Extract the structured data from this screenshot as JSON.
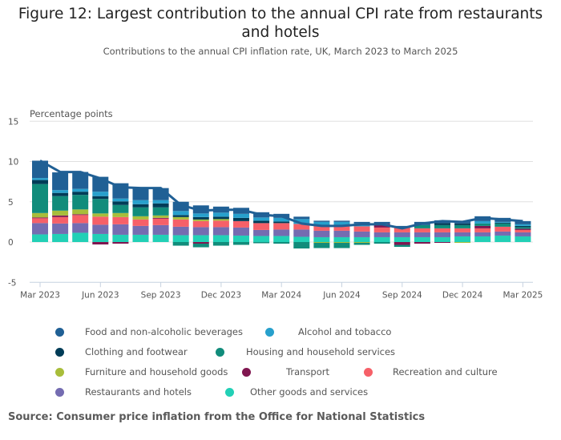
{
  "title": "Figure 12: Largest contribution to the annual CPI rate from restaurants and hotels",
  "subtitle": "Contributions to the annual CPI inflation rate, UK, March 2023 to March 2025",
  "source": "Source: Consumer price inflation from the Office for National Statistics",
  "chart_data": {
    "type": "bar",
    "stacked": true,
    "title": "Figure 12: Largest contribution to the annual CPI rate from restaurants and hotels",
    "subtitle": "Contributions to the annual CPI inflation rate, UK, March 2023 to March 2025",
    "ylabel": "Percentage points",
    "xlabel": "",
    "ylim": [
      -5,
      15
    ],
    "yticks": [
      15,
      10,
      5,
      0,
      -5
    ],
    "grid": true,
    "legend_position": "bottom",
    "x": [
      "Mar 2023",
      "Apr 2023",
      "May 2023",
      "Jun 2023",
      "Jul 2023",
      "Aug 2023",
      "Sep 2023",
      "Oct 2023",
      "Nov 2023",
      "Dec 2023",
      "Jan 2024",
      "Feb 2024",
      "Mar 2024",
      "Apr 2024",
      "May 2024",
      "Jun 2024",
      "Jul 2024",
      "Aug 2024",
      "Sep 2024",
      "Oct 2024",
      "Nov 2024",
      "Dec 2024",
      "Jan 2025",
      "Feb 2025",
      "Mar 2025"
    ],
    "xtick_labels": [
      "Mar 2023",
      "Jun 2023",
      "Sep 2023",
      "Dec 2023",
      "Mar 2024",
      "Jun 2024",
      "Sep 2024",
      "Dec 2024",
      "Mar 2025"
    ],
    "series": [
      {
        "name": "Other goods and services",
        "color": "#22d0b6",
        "values": [
          0.95,
          1.0,
          1.15,
          1.0,
          0.9,
          0.9,
          0.9,
          0.85,
          0.85,
          0.85,
          0.8,
          0.75,
          0.75,
          0.65,
          0.6,
          0.6,
          0.6,
          0.6,
          0.6,
          0.6,
          0.6,
          0.7,
          0.7,
          0.8,
          0.7
        ]
      },
      {
        "name": "Restaurants and hotels",
        "color": "#746cb1",
        "values": [
          1.4,
          1.3,
          1.2,
          1.15,
          1.3,
          1.1,
          1.2,
          1.05,
          1.0,
          1.0,
          1.0,
          0.75,
          0.8,
          0.9,
          0.8,
          0.8,
          0.7,
          0.6,
          0.6,
          0.6,
          0.6,
          0.5,
          0.5,
          0.5,
          0.5
        ]
      },
      {
        "name": "Recreation and culture",
        "color": "#f66068",
        "values": [
          0.6,
          0.8,
          1.0,
          1.0,
          0.9,
          0.8,
          0.8,
          0.9,
          0.75,
          0.8,
          0.8,
          0.85,
          0.8,
          0.7,
          0.55,
          0.55,
          0.65,
          0.6,
          0.6,
          0.5,
          0.5,
          0.5,
          0.5,
          0.6,
          0.3
        ]
      },
      {
        "name": "Transport",
        "color": "#801650",
        "values": [
          0.1,
          0.2,
          0.1,
          -0.3,
          -0.2,
          0.0,
          0.1,
          0.0,
          -0.2,
          0.0,
          0.0,
          0.0,
          0.0,
          0.0,
          0.0,
          0.0,
          0.0,
          0.45,
          -0.35,
          -0.2,
          -0.1,
          0.0,
          0.3,
          0.0,
          0.15
        ]
      },
      {
        "name": "Furniture and household goods",
        "color": "#a8bd3a",
        "values": [
          0.55,
          0.6,
          0.6,
          0.4,
          0.5,
          0.4,
          0.3,
          0.3,
          0.2,
          0.2,
          0.0,
          0.0,
          0.0,
          0.0,
          -0.1,
          -0.1,
          -0.1,
          0.0,
          0.0,
          0.0,
          0.0,
          -0.1,
          0.0,
          0.0,
          0.0
        ]
      },
      {
        "name": "Housing and household services",
        "color": "#118c7b",
        "values": [
          3.6,
          1.8,
          1.8,
          1.8,
          1.0,
          1.1,
          1.0,
          -0.45,
          -0.45,
          -0.45,
          -0.35,
          -0.15,
          -0.2,
          -0.8,
          -0.65,
          -0.65,
          -0.25,
          -0.2,
          -0.25,
          0.4,
          0.4,
          0.4,
          0.3,
          0.4,
          0.2
        ]
      },
      {
        "name": "Clothing and footwear",
        "color": "#003c57",
        "values": [
          0.5,
          0.4,
          0.4,
          0.35,
          0.45,
          0.4,
          0.5,
          0.25,
          0.3,
          0.3,
          0.4,
          0.3,
          0.2,
          0.0,
          0.0,
          0.0,
          0.0,
          0.0,
          0.0,
          0.0,
          0.25,
          0.2,
          0.0,
          0.1,
          0.15
        ]
      },
      {
        "name": "Alcohol and tobacco",
        "color": "#27a0cc",
        "values": [
          0.25,
          0.35,
          0.35,
          0.55,
          0.35,
          0.5,
          0.4,
          0.5,
          0.45,
          0.5,
          0.5,
          0.4,
          0.45,
          0.6,
          0.55,
          0.55,
          0.35,
          0.0,
          0.0,
          0.0,
          0.0,
          0.0,
          0.3,
          0.1,
          0.2
        ]
      },
      {
        "name": "Food and non-alcoholic beverages",
        "color": "#206095",
        "values": [
          2.15,
          2.2,
          2.1,
          1.85,
          1.9,
          1.5,
          1.5,
          1.15,
          1.0,
          0.75,
          0.75,
          0.65,
          0.5,
          0.3,
          0.15,
          0.15,
          0.2,
          0.25,
          0.2,
          0.4,
          0.35,
          0.3,
          0.6,
          0.5,
          0.4
        ]
      }
    ],
    "line": {
      "name": "CPI annual rate",
      "color": "#206095",
      "values": [
        10.1,
        8.7,
        8.7,
        7.9,
        6.8,
        6.7,
        6.7,
        4.6,
        3.9,
        4.0,
        4.0,
        3.4,
        3.2,
        2.3,
        2.0,
        2.0,
        2.2,
        2.2,
        1.7,
        2.3,
        2.6,
        2.5,
        3.0,
        2.8,
        2.6
      ]
    }
  },
  "legend": {
    "rows": [
      [
        {
          "name": "Food and non-alcoholic beverages",
          "color": "#206095"
        },
        {
          "name": "Alcohol and tobacco",
          "color": "#27a0cc"
        }
      ],
      [
        {
          "name": "Clothing and footwear",
          "color": "#003c57"
        },
        {
          "name": "Housing and household services",
          "color": "#118c7b"
        }
      ],
      [
        {
          "name": "Furniture and household goods",
          "color": "#a8bd3a"
        },
        {
          "name": "Transport",
          "color": "#801650"
        },
        {
          "name": "Recreation and culture",
          "color": "#f66068"
        }
      ],
      [
        {
          "name": "Restaurants and hotels",
          "color": "#746cb1"
        },
        {
          "name": "Other goods and services",
          "color": "#22d0b6"
        }
      ]
    ]
  }
}
